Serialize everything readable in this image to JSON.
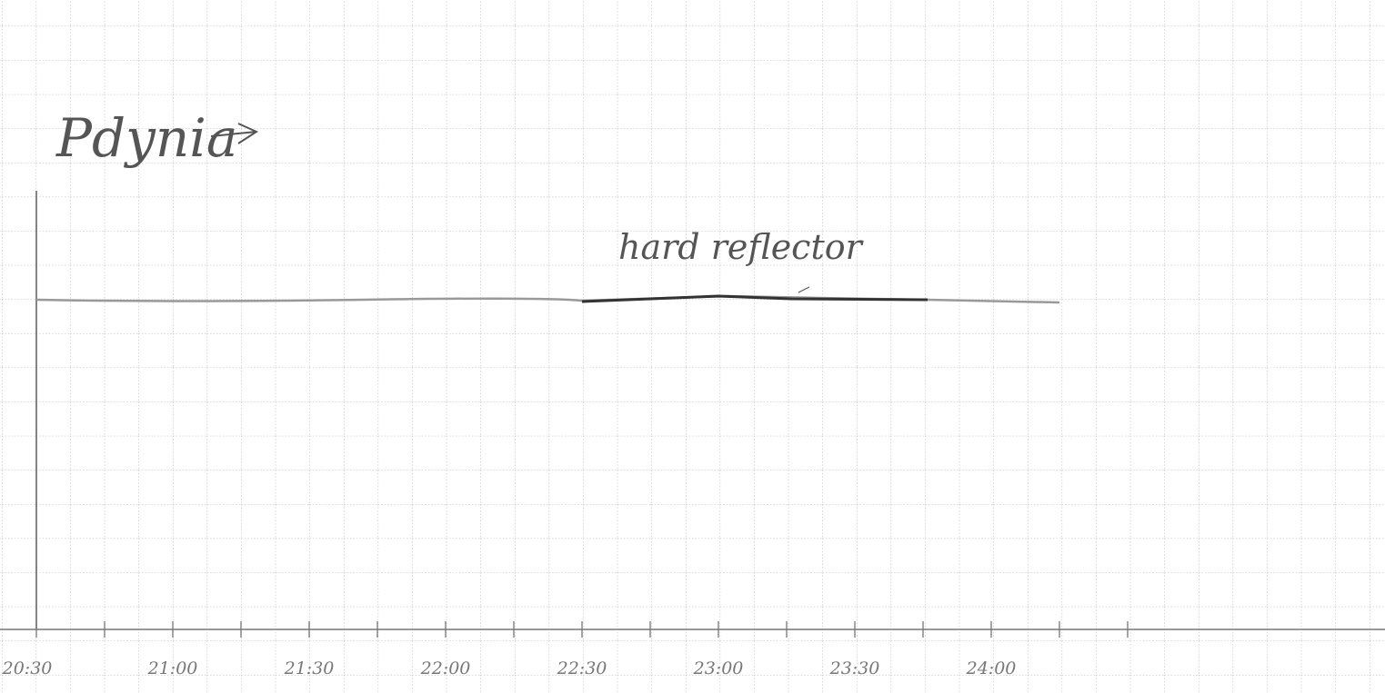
{
  "annotations": {
    "place": "Pdynia",
    "feature": "hard reflector"
  },
  "time_axis": {
    "labels": [
      "20:30",
      "21:00",
      "21:30",
      "22:00",
      "22:30",
      "23:00",
      "23:30",
      "24:00"
    ]
  }
}
